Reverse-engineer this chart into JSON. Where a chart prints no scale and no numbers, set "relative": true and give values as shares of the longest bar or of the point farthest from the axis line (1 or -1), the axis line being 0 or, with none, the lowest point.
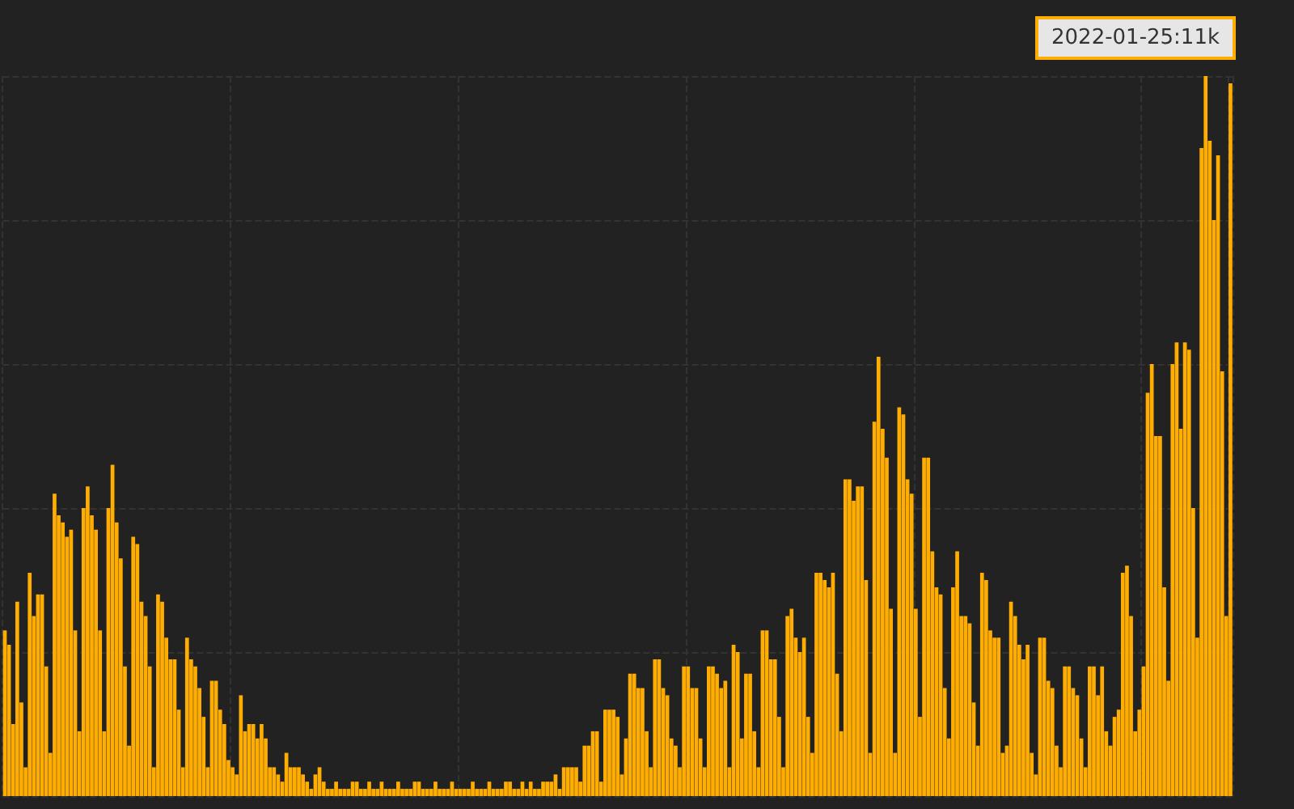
{
  "chart_data": {
    "type": "bar",
    "relative": true,
    "color": "#ffad00",
    "grid": true,
    "annotations": [
      "2022-01-25:11k"
    ],
    "categories": [
      null,
      null,
      null,
      null,
      null,
      null,
      null,
      null,
      null,
      null,
      null,
      null,
      null,
      null,
      null,
      null,
      null,
      null,
      null,
      null,
      null,
      null,
      null,
      null,
      null,
      null,
      null,
      null,
      null,
      null,
      null,
      null,
      null,
      null,
      null,
      null,
      null,
      null,
      null,
      null,
      null,
      null,
      null,
      null,
      null,
      null,
      null,
      null,
      null,
      null,
      null,
      null,
      null,
      null,
      null,
      null,
      null,
      null,
      null,
      null,
      null,
      null,
      null,
      null,
      null,
      null,
      null,
      null,
      null,
      null,
      null,
      null,
      null,
      null,
      null,
      null,
      null,
      null,
      null,
      null,
      null,
      null,
      null,
      null,
      null,
      null,
      null,
      null,
      null,
      null,
      null,
      null,
      null,
      null,
      null,
      null,
      null,
      null,
      null,
      null,
      null,
      null,
      null,
      null,
      null,
      null,
      null,
      null,
      null,
      null,
      null,
      null,
      null,
      null,
      null,
      null,
      null,
      null,
      null,
      null,
      null,
      null,
      null,
      null,
      null,
      null,
      null,
      null,
      null,
      null,
      null,
      null,
      null,
      null,
      null,
      null,
      null,
      null,
      null,
      null,
      null,
      null,
      null,
      null,
      null,
      null,
      null,
      null,
      null,
      null,
      null,
      null,
      null,
      null,
      null,
      null,
      null,
      null,
      null,
      null,
      null,
      null,
      null,
      null,
      null,
      null,
      null,
      null,
      null,
      null,
      null,
      null,
      null,
      null,
      null,
      null,
      null,
      null,
      null,
      null,
      null,
      null,
      null,
      null,
      null,
      null,
      null,
      null,
      null,
      null,
      null,
      null,
      null,
      null,
      null,
      null,
      null,
      null,
      null,
      null,
      null,
      null,
      null,
      null,
      null,
      null,
      null,
      null,
      null,
      null,
      null,
      null,
      null,
      null,
      null,
      null,
      null,
      null,
      null,
      null,
      null,
      null,
      null,
      null,
      null,
      null,
      null,
      null,
      null,
      null,
      null,
      null,
      null,
      null,
      null,
      null,
      null,
      null,
      null,
      null,
      null,
      null,
      null,
      null,
      null,
      null,
      null,
      null,
      null,
      null,
      null,
      null,
      null,
      null,
      null,
      null,
      null,
      null,
      null,
      null,
      null,
      null,
      null,
      null,
      null,
      null,
      null,
      null,
      null,
      null,
      null,
      null,
      null,
      null,
      null,
      null,
      null,
      null,
      null,
      null,
      null,
      null,
      null,
      null,
      null,
      null,
      null,
      null,
      null,
      null,
      null,
      null,
      null,
      null,
      null,
      null,
      null
    ],
    "values": [
      0.23,
      0.21,
      0.1,
      0.27,
      0.13,
      0.04,
      0.31,
      0.25,
      0.28,
      0.28,
      0.18,
      0.06,
      0.42,
      0.39,
      0.38,
      0.36,
      0.37,
      0.23,
      0.09,
      0.4,
      0.43,
      0.39,
      0.37,
      0.23,
      0.09,
      0.4,
      0.46,
      0.38,
      0.33,
      0.18,
      0.07,
      0.36,
      0.35,
      0.27,
      0.25,
      0.18,
      0.04,
      0.28,
      0.27,
      0.22,
      0.19,
      0.19,
      0.12,
      0.04,
      0.22,
      0.19,
      0.18,
      0.15,
      0.11,
      0.04,
      0.16,
      0.16,
      0.12,
      0.1,
      0.05,
      0.04,
      0.03,
      0.14,
      0.09,
      0.1,
      0.1,
      0.08,
      0.1,
      0.08,
      0.04,
      0.04,
      0.03,
      0.02,
      0.06,
      0.04,
      0.04,
      0.04,
      0.03,
      0.02,
      0.01,
      0.03,
      0.04,
      0.02,
      0.01,
      0.01,
      0.02,
      0.01,
      0.01,
      0.01,
      0.02,
      0.02,
      0.01,
      0.01,
      0.02,
      0.01,
      0.01,
      0.02,
      0.01,
      0.01,
      0.01,
      0.02,
      0.01,
      0.01,
      0.01,
      0.02,
      0.02,
      0.01,
      0.01,
      0.01,
      0.02,
      0.01,
      0.01,
      0.01,
      0.02,
      0.01,
      0.01,
      0.01,
      0.01,
      0.02,
      0.01,
      0.01,
      0.01,
      0.02,
      0.01,
      0.01,
      0.01,
      0.02,
      0.02,
      0.01,
      0.01,
      0.02,
      0.01,
      0.02,
      0.01,
      0.01,
      0.02,
      0.02,
      0.02,
      0.03,
      0.01,
      0.04,
      0.04,
      0.04,
      0.04,
      0.02,
      0.07,
      0.07,
      0.09,
      0.09,
      0.02,
      0.12,
      0.12,
      0.12,
      0.11,
      0.03,
      0.08,
      0.17,
      0.17,
      0.15,
      0.15,
      0.09,
      0.04,
      0.19,
      0.19,
      0.15,
      0.14,
      0.08,
      0.07,
      0.04,
      0.18,
      0.18,
      0.15,
      0.15,
      0.08,
      0.04,
      0.18,
      0.18,
      0.17,
      0.15,
      0.16,
      0.04,
      0.21,
      0.2,
      0.08,
      0.17,
      0.17,
      0.09,
      0.04,
      0.23,
      0.23,
      0.19,
      0.19,
      0.11,
      0.04,
      0.25,
      0.26,
      0.22,
      0.2,
      0.22,
      0.11,
      0.06,
      0.31,
      0.31,
      0.3,
      0.29,
      0.31,
      0.17,
      0.09,
      0.44,
      0.44,
      0.41,
      0.43,
      0.43,
      0.3,
      0.06,
      0.52,
      0.61,
      0.51,
      0.47,
      0.26,
      0.06,
      0.54,
      0.53,
      0.44,
      0.42,
      0.26,
      0.11,
      0.47,
      0.47,
      0.34,
      0.29,
      0.28,
      0.15,
      0.08,
      0.29,
      0.34,
      0.25,
      0.25,
      0.24,
      0.13,
      0.07,
      0.31,
      0.3,
      0.23,
      0.22,
      0.22,
      0.06,
      0.07,
      0.27,
      0.25,
      0.21,
      0.19,
      0.21,
      0.06,
      0.03,
      0.22,
      0.22,
      0.16,
      0.15,
      0.07,
      0.04,
      0.18,
      0.18,
      0.15,
      0.14,
      0.08,
      0.04,
      0.18,
      0.18,
      0.14,
      0.18,
      0.09,
      0.07,
      0.11,
      0.12,
      0.31,
      0.32,
      0.25,
      0.09,
      0.12,
      0.18,
      0.56,
      0.6,
      0.5,
      0.5,
      0.29,
      0.16,
      0.6,
      0.63,
      0.51,
      0.63,
      0.62,
      0.4,
      0.22,
      0.9,
      1.0,
      0.91,
      0.8,
      0.89,
      0.59,
      0.25,
      0.99
    ]
  }
}
